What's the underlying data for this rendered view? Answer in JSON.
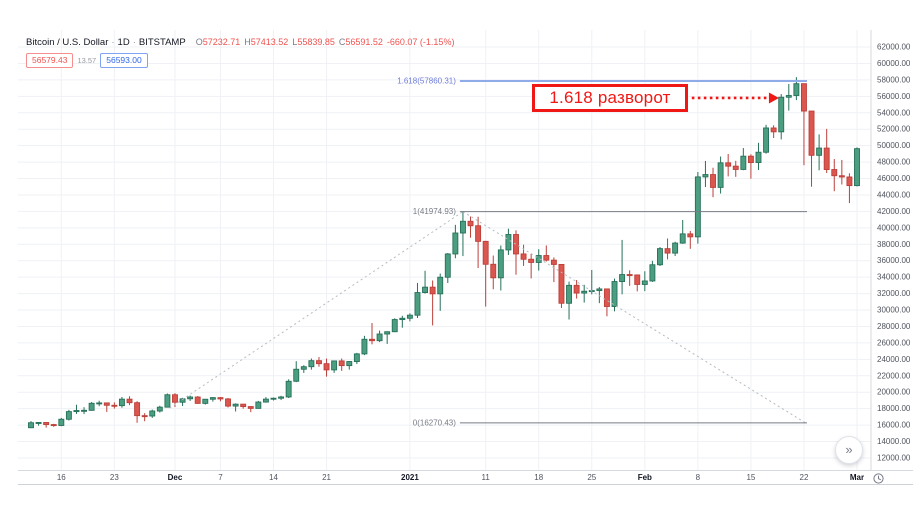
{
  "header": {
    "title": "Bitcoin / U.S. Dollar",
    "separator": "·",
    "interval": "1D",
    "exchange": "BITSTAMP",
    "open_label": "O",
    "open": "57232.71",
    "high_label": "H",
    "high": "57413.52",
    "low_label": "L",
    "low": "55839.85",
    "close_label": "C",
    "close": "56591.52",
    "change": "-660.07 (-1.15%)"
  },
  "trade_panel": {
    "sell": "56579.43",
    "spread": "13.57",
    "buy": "56593.00"
  },
  "annotation": {
    "text": "1.618 разворот"
  },
  "controls": {
    "scroll_to_recent": "»"
  },
  "colors": {
    "up_fill": "#4C9E80",
    "up_border": "#26705A",
    "down_fill": "#DB564F",
    "down_border": "#BC3F39",
    "grid": "#EFF1F5",
    "axis_line": "#D6D9E0",
    "bottom_line": "#CFD2D9",
    "axis_text": "#50545E",
    "axis_text_major": "#131722",
    "fib_blue_line": "#8FABE8",
    "fib_blue_text": "#6E7CD9",
    "fib_gray": "#787B86",
    "trend_dotted": "#B8BBC4",
    "arrow_red": "#F01814"
  },
  "chart_data": {
    "type": "candlestick",
    "title": "Bitcoin / U.S. Dollar",
    "interval": "1D",
    "exchange": "BITSTAMP",
    "grid": true,
    "legend_position": "top-left",
    "y_axis": {
      "min": 12000,
      "max": 62000,
      "step": 2000,
      "label_decimals": 2
    },
    "x_ticks": [
      [
        4,
        "16",
        0
      ],
      [
        11,
        "23",
        0
      ],
      [
        19,
        "Dec",
        1
      ],
      [
        25,
        "7",
        0
      ],
      [
        32,
        "14",
        0
      ],
      [
        39,
        "21",
        0
      ],
      [
        50,
        "2021",
        1
      ],
      [
        60,
        "11",
        0
      ],
      [
        67,
        "18",
        0
      ],
      [
        74,
        "25",
        0
      ],
      [
        81,
        "Feb",
        1
      ],
      [
        88,
        "8",
        0
      ],
      [
        95,
        "15",
        0
      ],
      [
        102,
        "22",
        0
      ],
      [
        109,
        "Mar",
        1
      ]
    ],
    "fib_extension": {
      "line_start_day": 56.6,
      "line_end_day": 102.4,
      "levels": [
        {
          "level": "1.618",
          "price": 57860.31,
          "label": "1.618(57860.31)",
          "style": "blue"
        },
        {
          "level": "1",
          "price": 41974.93,
          "label": "1(41974.93)",
          "style": "gray"
        },
        {
          "level": "0",
          "price": 16270.43,
          "label": "0(16270.43)",
          "style": "gray"
        }
      ]
    },
    "trendlines": [
      {
        "from_day": 18.3,
        "from_price": 18080,
        "to_day": 57,
        "to_price": 41974.93
      },
      {
        "from_day": 57,
        "from_price": 41974.93,
        "to_day": 102.2,
        "to_price": 16270.43
      }
    ],
    "annotation_arrow": {
      "price": 55800,
      "from_day": 87.2,
      "to_day": 98.7
    },
    "candles": [
      [
        "Nov 12",
        15684,
        16480,
        15630,
        16291
      ],
      [
        "Nov 13",
        16291,
        16375,
        15930,
        16320
      ],
      [
        "Nov 14",
        16320,
        16320,
        15700,
        16068
      ],
      [
        "Nov 15",
        16068,
        16160,
        15790,
        15955
      ],
      [
        "Nov 16",
        15955,
        16880,
        15870,
        16716
      ],
      [
        "Nov 17",
        16716,
        17858,
        16560,
        17645
      ],
      [
        "Nov 18",
        17645,
        18477,
        17355,
        17777
      ],
      [
        "Nov 19",
        17777,
        18180,
        17340,
        17802
      ],
      [
        "Nov 20",
        17802,
        18815,
        17760,
        18655
      ],
      [
        "Nov 21",
        18655,
        18965,
        18300,
        18703
      ],
      [
        "Nov 22",
        18703,
        18750,
        17610,
        18414
      ],
      [
        "Nov 23",
        18414,
        18770,
        18010,
        18370
      ],
      [
        "Nov 24",
        18370,
        19420,
        18120,
        19160
      ],
      [
        "Nov 25",
        19160,
        19510,
        18430,
        18729
      ],
      [
        "Nov 26",
        18729,
        18907,
        16290,
        17153
      ],
      [
        "Nov 27",
        17153,
        17457,
        16470,
        17108
      ],
      [
        "Nov 28",
        17108,
        17890,
        16880,
        17717
      ],
      [
        "Nov 29",
        17717,
        18360,
        17530,
        18185
      ],
      [
        "Nov 30",
        18185,
        19845,
        18180,
        19695
      ],
      [
        "Dec 1",
        19695,
        19888,
        18200,
        18784
      ],
      [
        "Dec 2",
        18784,
        19320,
        18330,
        19202
      ],
      [
        "Dec 3",
        19202,
        19600,
        18940,
        19420
      ],
      [
        "Dec 4",
        19420,
        19530,
        18590,
        18644
      ],
      [
        "Dec 5",
        18644,
        19170,
        18500,
        19150
      ],
      [
        "Dec 6",
        19150,
        19400,
        18860,
        19344
      ],
      [
        "Dec 7",
        19344,
        19420,
        18900,
        19185
      ],
      [
        "Dec 8",
        19185,
        19300,
        18150,
        18318
      ],
      [
        "Dec 9",
        18318,
        18650,
        17660,
        18551
      ],
      [
        "Dec 10",
        18551,
        18560,
        18000,
        18254
      ],
      [
        "Dec 11",
        18254,
        18300,
        17580,
        18036
      ],
      [
        "Dec 12",
        18036,
        18950,
        18030,
        18806
      ],
      [
        "Dec 13",
        18806,
        19410,
        18730,
        19163
      ],
      [
        "Dec 14",
        19163,
        19350,
        19000,
        19273
      ],
      [
        "Dec 15",
        19273,
        19570,
        19050,
        19426
      ],
      [
        "Dec 16",
        19426,
        21570,
        19300,
        21335
      ],
      [
        "Dec 17",
        21335,
        23777,
        21230,
        22797
      ],
      [
        "Dec 18",
        22797,
        23285,
        22350,
        23107
      ],
      [
        "Dec 19",
        23107,
        24100,
        22750,
        23842
      ],
      [
        "Dec 20",
        23842,
        24280,
        23100,
        23475
      ],
      [
        "Dec 21",
        23475,
        24100,
        21900,
        22719
      ],
      [
        "Dec 22",
        22719,
        23800,
        22360,
        23811
      ],
      [
        "Dec 23",
        23811,
        24100,
        22600,
        23240
      ],
      [
        "Dec 24",
        23240,
        23800,
        22750,
        23735
      ],
      [
        "Dec 25",
        23735,
        24790,
        23430,
        24665
      ],
      [
        "Dec 26",
        24665,
        26860,
        24510,
        26443
      ],
      [
        "Dec 27",
        26443,
        28422,
        25830,
        26272
      ],
      [
        "Dec 28",
        26272,
        27500,
        26100,
        27084
      ],
      [
        "Dec 29",
        27084,
        27410,
        25880,
        27362
      ],
      [
        "Dec 30",
        27362,
        28996,
        27320,
        28841
      ],
      [
        "Dec 31",
        28841,
        29300,
        27850,
        29002
      ],
      [
        "Jan 1",
        29002,
        29600,
        28624,
        29374
      ],
      [
        "Jan 2",
        29374,
        33300,
        29030,
        32128
      ],
      [
        "Jan 3",
        32128,
        34778,
        32000,
        32783
      ],
      [
        "Jan 4",
        32783,
        33600,
        28130,
        31971
      ],
      [
        "Jan 5",
        31971,
        34437,
        29900,
        33992
      ],
      [
        "Jan 6",
        33992,
        36939,
        33288,
        36825
      ],
      [
        "Jan 7",
        36825,
        40365,
        36300,
        39371
      ],
      [
        "Jan 8",
        39371,
        41950,
        36565,
        40798
      ],
      [
        "Jan 9",
        40798,
        41380,
        38800,
        40255
      ],
      [
        "Jan 10",
        40255,
        41350,
        35111,
        38356
      ],
      [
        "Jan 11",
        38356,
        38419,
        30420,
        35567
      ],
      [
        "Jan 12",
        35567,
        36628,
        32531,
        33923
      ],
      [
        "Jan 13",
        33923,
        37850,
        32380,
        37316
      ],
      [
        "Jan 14",
        37316,
        39900,
        36700,
        39187
      ],
      [
        "Jan 15",
        39187,
        39697,
        34298,
        36825
      ],
      [
        "Jan 16",
        36825,
        37950,
        35370,
        36178
      ],
      [
        "Jan 17",
        36178,
        36860,
        33850,
        35791
      ],
      [
        "Jan 18",
        35791,
        37400,
        34800,
        36630
      ],
      [
        "Jan 19",
        36630,
        37857,
        35901,
        36069
      ],
      [
        "Jan 20",
        36069,
        36400,
        33400,
        35547
      ],
      [
        "Jan 21",
        35547,
        35600,
        30250,
        30825
      ],
      [
        "Jan 22",
        30825,
        33456,
        28850,
        33005
      ],
      [
        "Jan 23",
        33005,
        33650,
        31390,
        32067
      ],
      [
        "Jan 24",
        32067,
        33071,
        30910,
        32289
      ],
      [
        "Jan 25",
        32289,
        34875,
        31910,
        32366
      ],
      [
        "Jan 26",
        32366,
        32794,
        30837,
        32569
      ],
      [
        "Jan 27",
        32569,
        32570,
        29241,
        30432
      ],
      [
        "Jan 28",
        30432,
        33825,
        29842,
        33466
      ],
      [
        "Jan 29",
        33466,
        38531,
        31915,
        34316
      ],
      [
        "Jan 30",
        34316,
        34834,
        32940,
        34269
      ],
      [
        "Jan 31",
        34269,
        34288,
        32270,
        33114
      ],
      [
        "Feb 1",
        33114,
        34717,
        32296,
        33537
      ],
      [
        "Feb 2",
        33537,
        35984,
        33418,
        35510
      ],
      [
        "Feb 3",
        35510,
        37662,
        35362,
        37472
      ],
      [
        "Feb 4",
        37472,
        38708,
        36161,
        36926
      ],
      [
        "Feb 5",
        36926,
        38310,
        36570,
        38144
      ],
      [
        "Feb 6",
        38144,
        40955,
        38057,
        39266
      ],
      [
        "Feb 7",
        39266,
        39621,
        37446,
        38903
      ],
      [
        "Feb 8",
        38903,
        46794,
        38076,
        46196
      ],
      [
        "Feb 9",
        46196,
        48142,
        44961,
        46481
      ],
      [
        "Feb 10",
        46481,
        47310,
        43727,
        44918
      ],
      [
        "Feb 11",
        44918,
        48678,
        44168,
        47909
      ],
      [
        "Feb 12",
        47909,
        48985,
        46260,
        47504
      ],
      [
        "Feb 13",
        47504,
        48150,
        46202,
        47105
      ],
      [
        "Feb 14",
        47105,
        49705,
        47014,
        48717
      ],
      [
        "Feb 15",
        48717,
        48949,
        45980,
        47945
      ],
      [
        "Feb 16",
        47945,
        50341,
        47046,
        49199
      ],
      [
        "Feb 17",
        49199,
        52533,
        49022,
        52149
      ],
      [
        "Feb 18",
        52149,
        52474,
        50930,
        51679
      ],
      [
        "Feb 19",
        51679,
        56273,
        50754,
        55888
      ],
      [
        "Feb 20",
        55888,
        57505,
        54262,
        56099
      ],
      [
        "Feb 21",
        56099,
        58330,
        55535,
        57539
      ],
      [
        "Feb 22",
        57539,
        57540,
        47622,
        54207
      ],
      [
        "Feb 23",
        54207,
        54210,
        45000,
        48824
      ],
      [
        "Feb 24",
        48824,
        51369,
        47004,
        49705
      ],
      [
        "Feb 25",
        49705,
        52041,
        46674,
        47093
      ],
      [
        "Feb 26",
        47093,
        48370,
        44454,
        46339
      ],
      [
        "Feb 27",
        46339,
        48253,
        45269,
        46188
      ],
      [
        "Feb 28",
        46188,
        46638,
        43016,
        45137
      ],
      [
        "Mar 1",
        45137,
        49790,
        45050,
        49631
      ]
    ]
  }
}
